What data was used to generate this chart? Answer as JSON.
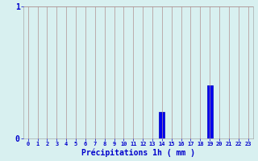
{
  "hours": [
    0,
    1,
    2,
    3,
    4,
    5,
    6,
    7,
    8,
    9,
    10,
    11,
    12,
    13,
    14,
    15,
    16,
    17,
    18,
    19,
    20,
    21,
    22,
    23
  ],
  "values": [
    0,
    0,
    0,
    0,
    0,
    0,
    0,
    0,
    0,
    0,
    0,
    0,
    0,
    0,
    0.2,
    0,
    0,
    0,
    0,
    0.4,
    0,
    0,
    0,
    0
  ],
  "bar_color": "#0000ee",
  "bar_edge_color": "#0000bb",
  "background_color": "#d8f0f0",
  "grid_color": "#b09090",
  "axis_label_color": "#0000cc",
  "tick_color": "#0000cc",
  "xlabel": "Précipitations 1h ( mm )",
  "xlabel_fontsize": 7,
  "ylim": [
    0,
    1
  ],
  "xlim": [
    -0.5,
    23.5
  ],
  "yticks": [
    0,
    1
  ],
  "ylabel_0": "0",
  "ylabel_1": "1"
}
